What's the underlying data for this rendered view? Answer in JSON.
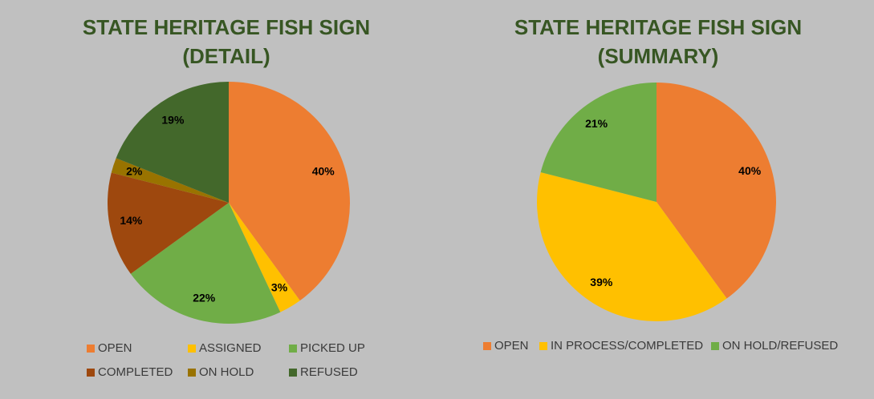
{
  "chart_data": [
    {
      "type": "pie",
      "title": "STATE HERITAGE FISH SIGN",
      "subtitle": "(DETAIL)",
      "categories": [
        "OPEN",
        "ASSIGNED",
        "PICKED UP",
        "COMPLETED",
        "ON HOLD",
        "REFUSED"
      ],
      "values": [
        40,
        3,
        22,
        14,
        2,
        19
      ],
      "value_labels": [
        "40%",
        "3%",
        "22%",
        "14%",
        "2%",
        "19%"
      ],
      "colors": [
        "#ed7d31",
        "#ffc000",
        "#70ad47",
        "#9e480e",
        "#997300",
        "#43682b"
      ]
    },
    {
      "type": "pie",
      "title": "STATE HERITAGE FISH SIGN",
      "subtitle": "(SUMMARY)",
      "categories": [
        "OPEN",
        "IN PROCESS/COMPLETED",
        "ON HOLD/REFUSED"
      ],
      "values": [
        40,
        39,
        21
      ],
      "value_labels": [
        "40%",
        "39%",
        "21%"
      ],
      "colors": [
        "#ed7d31",
        "#ffc000",
        "#70ad47"
      ]
    }
  ]
}
